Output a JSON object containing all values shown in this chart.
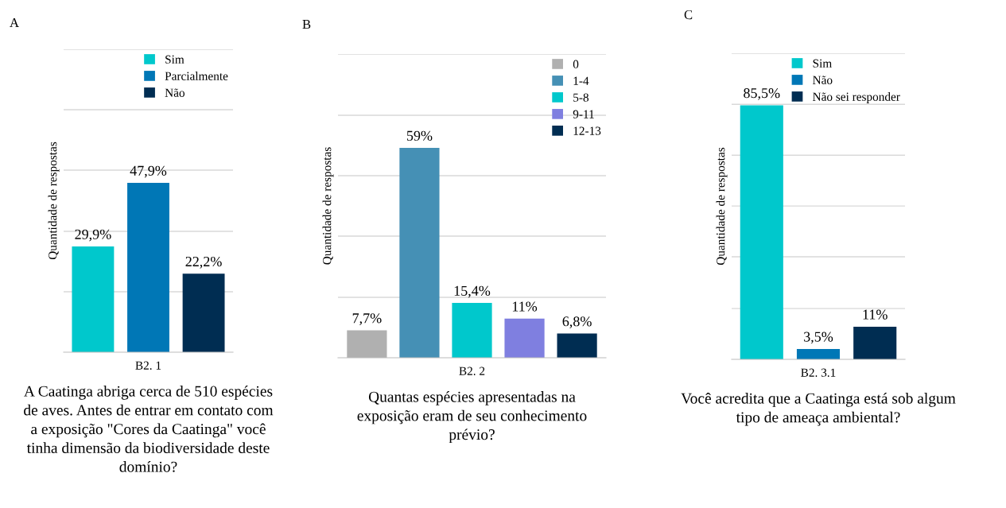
{
  "chart_data": [
    {
      "type": "bar",
      "title": "A",
      "xlabel": "B2. 1",
      "ylabel": "Quantidade de respostas",
      "categories": [
        null
      ],
      "series": [
        {
          "name": "Sim",
          "color": "#00c8cc",
          "values": [
            29.9
          ],
          "value_labels": [
            "29,9%"
          ]
        },
        {
          "name": "Parcialmente",
          "color": "#0077b6",
          "values": [
            47.9
          ],
          "value_labels": [
            "47,9%"
          ]
        },
        {
          "name": "Não",
          "color": "#002d52",
          "values": [
            22.2
          ],
          "value_labels": [
            "22,2%"
          ]
        }
      ],
      "ylim": [
        0,
        85.7
      ],
      "yticks": [
        {
          "value": 17.1,
          "label": null
        },
        {
          "value": 34.2,
          "label": null
        },
        {
          "value": 51.5,
          "label": null
        },
        {
          "value": 68.6,
          "label": null
        },
        {
          "value": 85.7,
          "label": null
        }
      ],
      "grid": "y",
      "legend": "top right",
      "tick_labels": false,
      "annotations": [
        "A Caatinga abriga cerca de 510 espécies\nde aves. Antes de entrar em contato com\na exposição \"Cores da Caatinga\" você\ntinha dimensão da biodiversidade deste\ndomínio?"
      ]
    },
    {
      "type": "bar",
      "title": "B",
      "xlabel": "B2. 2",
      "ylabel": "Quantidade de respostas",
      "categories": [
        null
      ],
      "series": [
        {
          "name": "0",
          "color": "#b0b0b0",
          "values": [
            7.7
          ],
          "value_labels": [
            "7,7%"
          ]
        },
        {
          "name": "1-4",
          "color": "#4590b5",
          "values": [
            59
          ],
          "value_labels": [
            "59%"
          ]
        },
        {
          "name": "5-8",
          "color": "#00c8cc",
          "values": [
            15.4
          ],
          "value_labels": [
            "15,4%"
          ]
        },
        {
          "name": "9-11",
          "color": "#7f7fe0",
          "values": [
            11
          ],
          "value_labels": [
            "11%"
          ]
        },
        {
          "name": "12-13",
          "color": "#002d52",
          "values": [
            6.8
          ],
          "value_labels": [
            "6,8%"
          ]
        }
      ],
      "ylim": [
        0,
        85.4
      ],
      "yticks": [
        {
          "value": 17,
          "label": null
        },
        {
          "value": 34.2,
          "label": null
        },
        {
          "value": 51.2,
          "label": null
        },
        {
          "value": 68.2,
          "label": null
        },
        {
          "value": 85.4,
          "label": null
        }
      ],
      "grid": "y",
      "legend": "top right",
      "tick_labels": false,
      "annotations": [
        "Quantas espécies apresentadas na\nexposição eram de seu conhecimento\nprévio?"
      ]
    },
    {
      "type": "bar",
      "title": "C",
      "xlabel": "B2. 3.1",
      "ylabel": "Quantidade de respostas",
      "categories": [
        null
      ],
      "series": [
        {
          "name": "Sim",
          "color": "#00c8cc",
          "values": [
            85.5
          ],
          "value_labels": [
            "85,5%"
          ]
        },
        {
          "name": "Não",
          "color": "#0077b6",
          "values": [
            3.5
          ],
          "value_labels": [
            "3,5%"
          ]
        },
        {
          "name": "Não sei responder",
          "color": "#002d52",
          "values": [
            11
          ],
          "value_labels": [
            "11%"
          ]
        }
      ],
      "ylim": [
        0,
        103
      ],
      "yticks": [
        {
          "value": 17.1,
          "label": null
        },
        {
          "value": 34.5,
          "label": null
        },
        {
          "value": 51.6,
          "label": null
        },
        {
          "value": 68.7,
          "label": null
        },
        {
          "value": 85.8,
          "label": null
        },
        {
          "value": 103,
          "label": null
        }
      ],
      "grid": "y",
      "legend": "top right",
      "tick_labels": false,
      "annotations": [
        "Você acredita que a Caatinga está sob algum\ntipo de ameaça ambiental?"
      ]
    }
  ]
}
